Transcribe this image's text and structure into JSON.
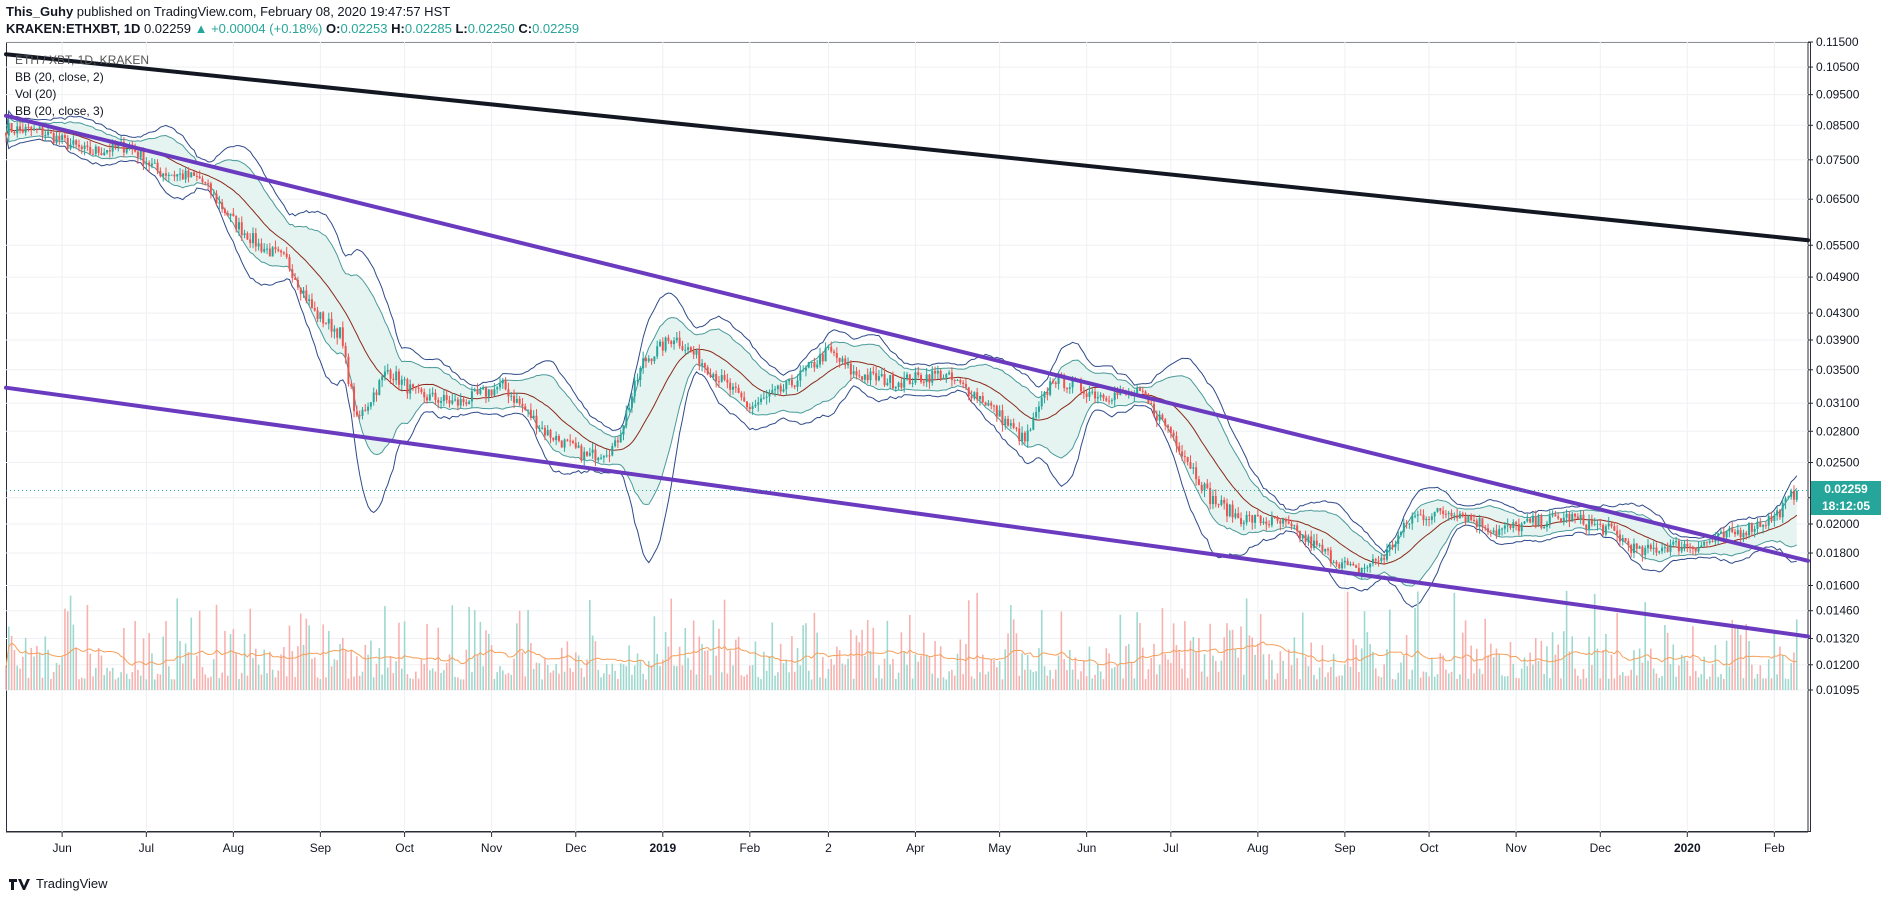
{
  "header": {
    "author": "This_Guhy",
    "published_text": " published on TradingView.com, February 08, 2020 19:47:57 HST",
    "symbol": "KRAKEN:ETHXBT, 1D",
    "last": "0.02259",
    "change": "▲ +0.00004 (+0.18%)",
    "o_label": "O:",
    "o_value": "0.02253",
    "h_label": "H:",
    "h_value": "0.02285",
    "l_label": "L:",
    "l_value": "0.02250",
    "c_label": "C:",
    "c_value": "0.02259"
  },
  "legend": {
    "main_series": "ETH / XBT, 1D, KRAKEN",
    "indicators": [
      "BB (20, close, 2)",
      "Vol (20)",
      "BB (20, close, 3)"
    ]
  },
  "price_badge": {
    "value": "0.02259",
    "countdown": "18:12:05",
    "color": "#26a69a"
  },
  "footer": {
    "brand": "TradingView"
  },
  "colors": {
    "up": "#26a69a",
    "down": "#ef5350",
    "bb_outer": "#2f4a8a",
    "bb_inner": "#4a9a9a",
    "basis": "#8b2a1a",
    "channel": "#6a3bbf",
    "long_trend": "#131722",
    "vol_ma": "#f5a05a",
    "fill": "#e6f4f1",
    "short_trend": "#e8c070"
  },
  "chart_data": {
    "type": "candlestick",
    "symbol": "ETH / XBT",
    "interval": "1D",
    "exchange": "KRAKEN",
    "y_scale": "log",
    "ylim": [
      0.01095,
      0.115
    ],
    "y_ticks": [
      "0.11500",
      "0.10500",
      "0.09500",
      "0.08500",
      "0.07500",
      "0.06500",
      "0.05500",
      "0.04900",
      "0.04300",
      "0.03900",
      "0.03500",
      "0.03100",
      "0.02800",
      "0.02500",
      "0.02200",
      "0.02000",
      "0.01800",
      "0.01600",
      "0.01460",
      "0.01320",
      "0.01200",
      "0.01095"
    ],
    "x_ticks": [
      "Jun",
      "Jul",
      "Aug",
      "Sep",
      "Oct",
      "Nov",
      "Dec",
      "2019",
      "Feb",
      "2",
      "Apr",
      "May",
      "Jun",
      "Jul",
      "Aug",
      "Sep",
      "Oct",
      "Nov",
      "Dec",
      "2020",
      "Feb"
    ],
    "x_range": [
      "2018-05-12",
      "2020-02-13"
    ],
    "close_path": [
      [
        "2018-05-12",
        0.084
      ],
      [
        "2018-05-25",
        0.083
      ],
      [
        "2018-06-10",
        0.077
      ],
      [
        "2018-06-25",
        0.079
      ],
      [
        "2018-07-05",
        0.072
      ],
      [
        "2018-07-20",
        0.07
      ],
      [
        "2018-08-01",
        0.06
      ],
      [
        "2018-08-10",
        0.055
      ],
      [
        "2018-08-20",
        0.052
      ],
      [
        "2018-08-30",
        0.043
      ],
      [
        "2018-09-08",
        0.04
      ],
      [
        "2018-09-14",
        0.029
      ],
      [
        "2018-09-25",
        0.035
      ],
      [
        "2018-10-05",
        0.032
      ],
      [
        "2018-10-20",
        0.031
      ],
      [
        "2018-11-05",
        0.033
      ],
      [
        "2018-11-20",
        0.028
      ],
      [
        "2018-12-05",
        0.0255
      ],
      [
        "2018-12-15",
        0.0265
      ],
      [
        "2018-12-25",
        0.036
      ],
      [
        "2019-01-05",
        0.0395
      ],
      [
        "2019-01-15",
        0.036
      ],
      [
        "2019-02-01",
        0.0305
      ],
      [
        "2019-02-15",
        0.033
      ],
      [
        "2019-03-01",
        0.0375
      ],
      [
        "2019-03-10",
        0.0345
      ],
      [
        "2019-03-25",
        0.0335
      ],
      [
        "2019-04-10",
        0.0345
      ],
      [
        "2019-04-25",
        0.0315
      ],
      [
        "2019-05-10",
        0.027
      ],
      [
        "2019-05-20",
        0.034
      ],
      [
        "2019-06-05",
        0.032
      ],
      [
        "2019-06-20",
        0.032
      ],
      [
        "2019-07-01",
        0.028
      ],
      [
        "2019-07-15",
        0.022
      ],
      [
        "2019-07-25",
        0.0205
      ],
      [
        "2019-08-10",
        0.02
      ],
      [
        "2019-08-25",
        0.018
      ],
      [
        "2019-09-05",
        0.0168
      ],
      [
        "2019-09-15",
        0.0178
      ],
      [
        "2019-09-25",
        0.0205
      ],
      [
        "2019-10-10",
        0.021
      ],
      [
        "2019-10-25",
        0.0195
      ],
      [
        "2019-11-05",
        0.02
      ],
      [
        "2019-11-20",
        0.0205
      ],
      [
        "2019-12-05",
        0.0195
      ],
      [
        "2019-12-15",
        0.018
      ],
      [
        "2019-12-25",
        0.0185
      ],
      [
        "2020-01-05",
        0.0185
      ],
      [
        "2020-01-20",
        0.0195
      ],
      [
        "2020-02-01",
        0.0205
      ],
      [
        "2020-02-09",
        0.02259
      ]
    ],
    "trendlines": [
      {
        "name": "long",
        "from": [
          "2018-05-12",
          0.11
        ],
        "to": [
          "2020-02-13",
          0.056
        ],
        "color": "#131722"
      },
      {
        "name": "upper_channel",
        "from": [
          "2018-05-12",
          0.088
        ],
        "to": [
          "2020-02-13",
          0.0175
        ],
        "color": "#6a3bbf"
      },
      {
        "name": "lower_channel",
        "from": [
          "2018-05-12",
          0.0328
        ],
        "to": [
          "2020-02-13",
          0.0133
        ],
        "color": "#6a3bbf"
      }
    ],
    "volume_scale": "relative",
    "series": [
      {
        "name": "BB (20, close, 2)"
      },
      {
        "name": "BB (20, close, 3)"
      },
      {
        "name": "Vol (20)"
      }
    ]
  }
}
